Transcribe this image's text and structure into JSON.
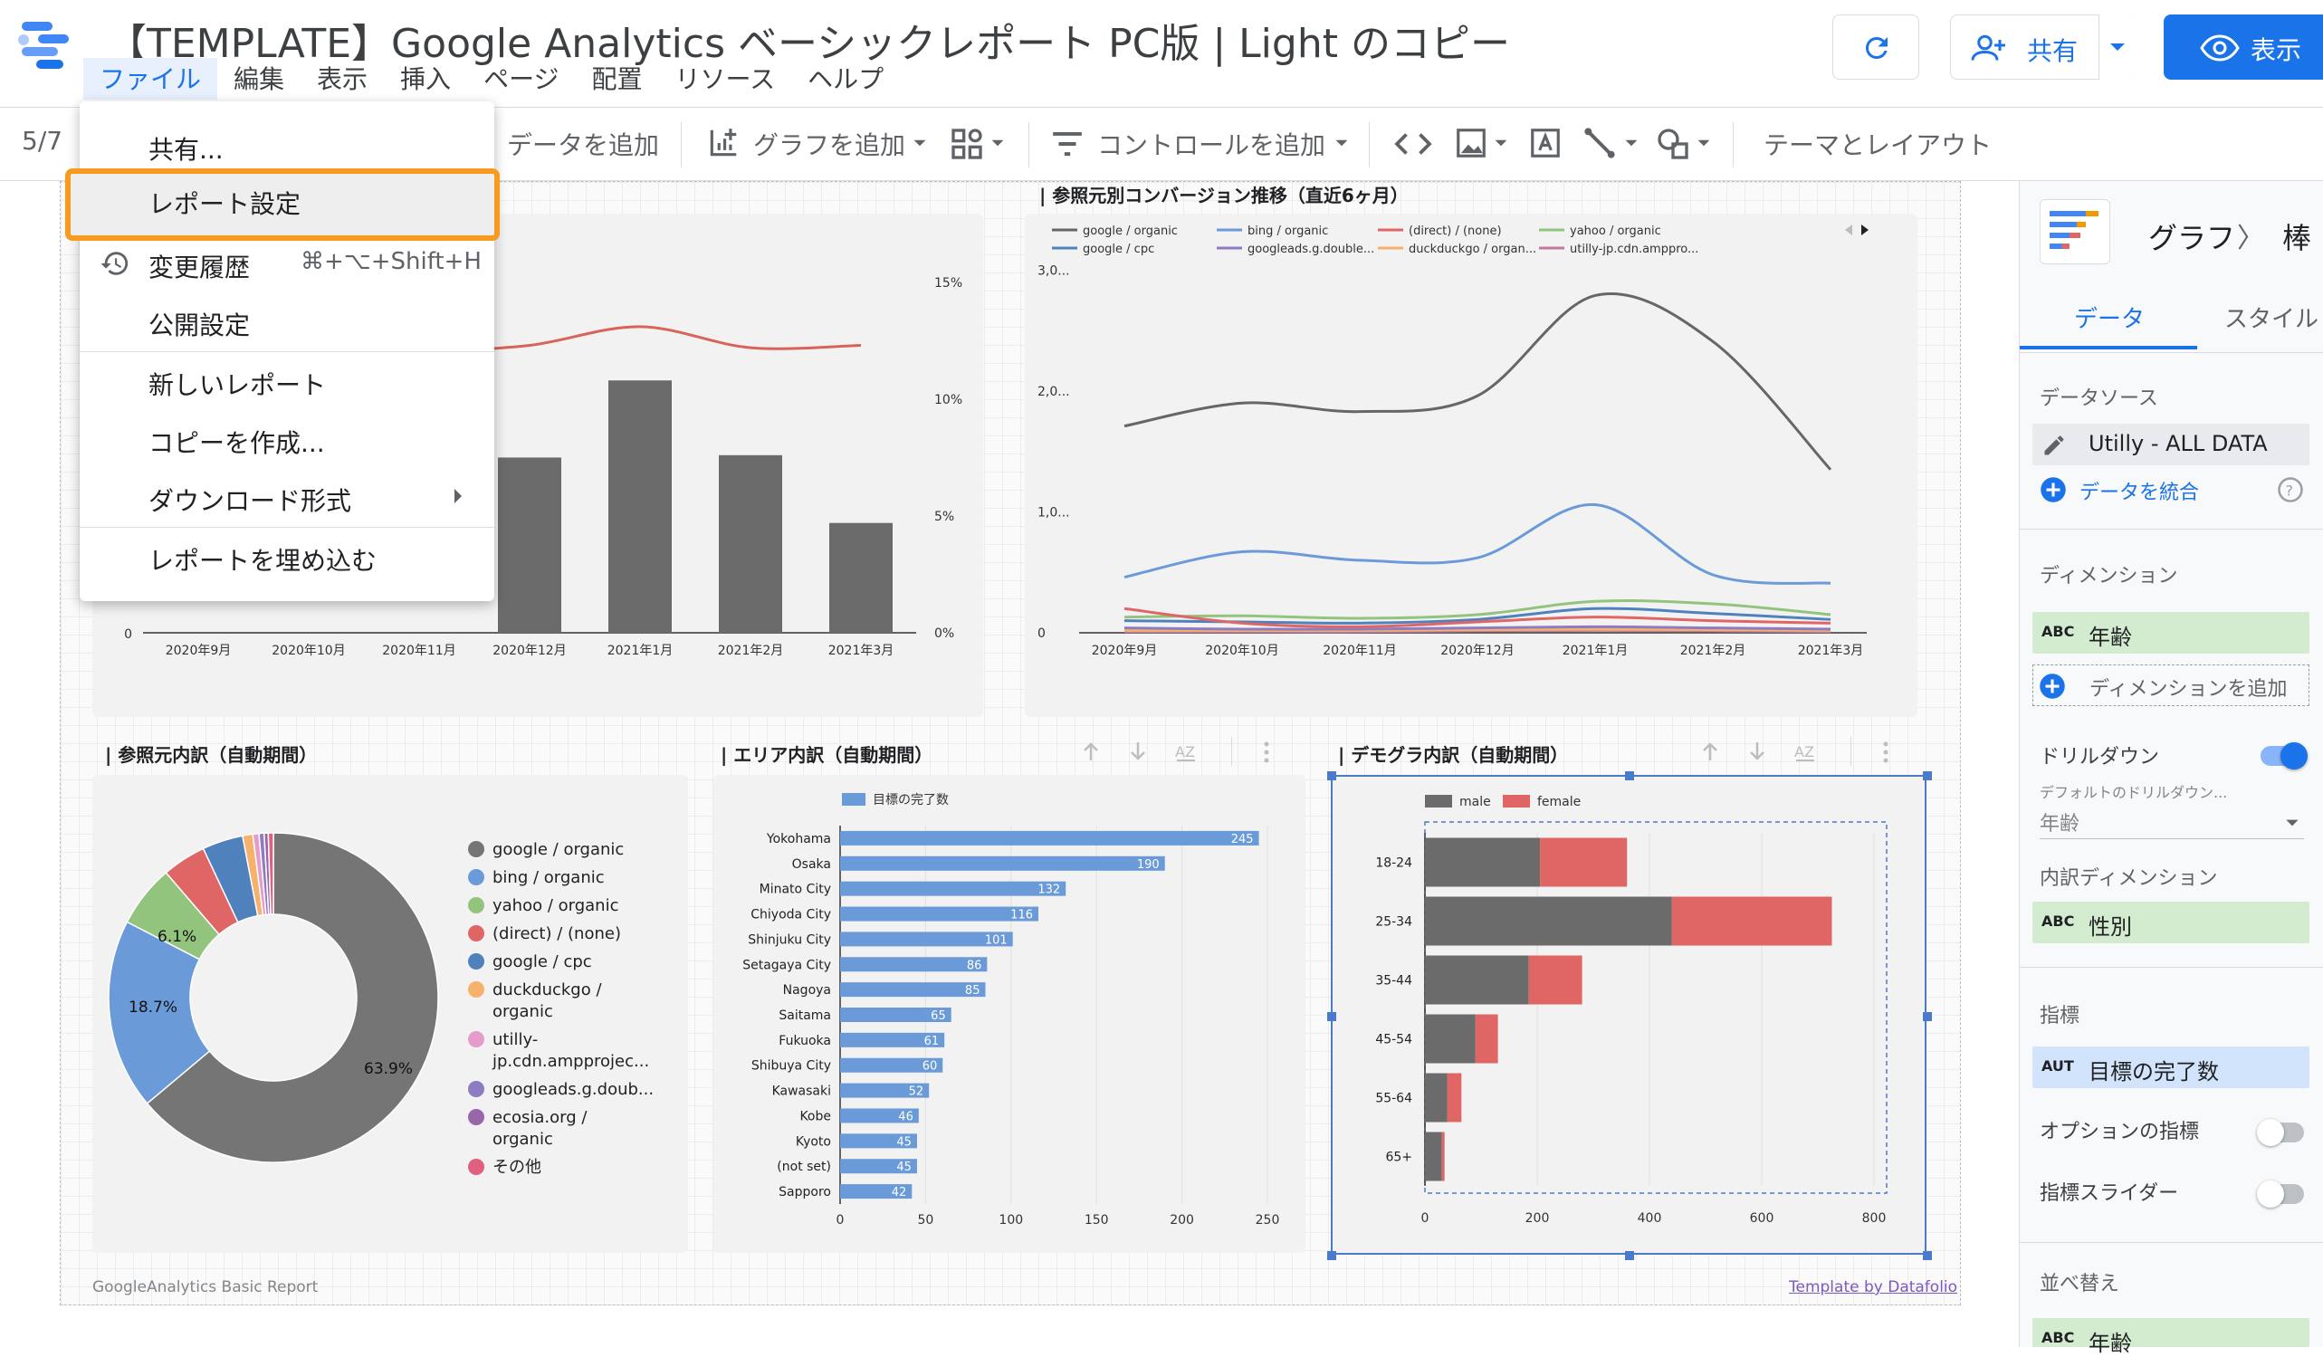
{
  "app": {
    "title": "【TEMPLATE】Google Analytics ベーシックレポート PC版 | Light のコピー",
    "menu": [
      "ファイル",
      "編集",
      "表示",
      "挿入",
      "ページ",
      "配置",
      "リソース",
      "ヘルプ"
    ],
    "share_label": "共有",
    "view_label": "表示"
  },
  "toolbar": {
    "page_indicator": "5/7",
    "add_data": "データを追加",
    "add_chart": "グラフを追加",
    "add_control": "コントロールを追加",
    "theme_layout": "テーマとレイアウト"
  },
  "file_menu": {
    "items": [
      {
        "label": "共有..."
      },
      {
        "label": "レポート設定"
      },
      {
        "label": "変更履歴",
        "shortcut": "⌘+⌥+Shift+H"
      },
      {
        "label": "公開設定"
      },
      {
        "label": "新しいレポート"
      },
      {
        "label": "コピーを作成..."
      },
      {
        "label": "ダウンロード形式"
      },
      {
        "label": "レポートを埋め込む"
      }
    ]
  },
  "charts": {
    "top_left": {
      "categories": [
        "2020年9月",
        "2020年10月",
        "2020年11月",
        "2020年12月",
        "2021年1月",
        "2021年2月",
        "2021年3月"
      ],
      "y_right_ticks": [
        "15%",
        "10%",
        "5%",
        "0%"
      ],
      "y_left_tick": "0"
    },
    "line": {
      "title": "| 参照元別コンバージョン推移（直近6ヶ月）",
      "legend": [
        "google / organic",
        "bing / organic",
        "(direct) / (none)",
        "yahoo / organic",
        "google / cpc",
        "googleads.g.double...",
        "duckduckgo / organ...",
        "utilly-jp.cdn.amppro..."
      ],
      "y_ticks": [
        "3,0...",
        "2,0...",
        "1,0...",
        "0"
      ],
      "categories": [
        "2020年9月",
        "2020年10月",
        "2020年11月",
        "2020年12月",
        "2021年1月",
        "2021年2月",
        "2021年3月"
      ]
    },
    "donut": {
      "title": "| 参照元内訳（自動期間）",
      "legend": [
        "google / organic",
        "bing / organic",
        "yahoo / organic",
        "(direct) / (none)",
        "google / cpc",
        "duckduckgo / organic",
        "utilly-jp.cdn.ampprojec...",
        "googleads.g.doub...",
        "ecosia.org / organic",
        "その他"
      ],
      "slice_labels": [
        "63.9%",
        "18.7%",
        "6.1%"
      ]
    },
    "area": {
      "title": "| エリア内訳（自動期間）",
      "legend": "目標の完了数",
      "x_ticks": [
        "0",
        "50",
        "100",
        "150",
        "200",
        "250"
      ]
    },
    "demo": {
      "title": "| デモグラ内訳（自動期間）",
      "legend_male": "male",
      "legend_female": "female",
      "x_ticks": [
        "0",
        "200",
        "400",
        "600",
        "800"
      ]
    }
  },
  "chart_data": [
    {
      "type": "bar",
      "categories": [
        "2020年9月",
        "2020年10月",
        "2020年11月",
        "2020年12月",
        "2021年1月",
        "2021年2月",
        "2021年3月"
      ],
      "series": [
        {
          "values": [
            null,
            null,
            null,
            7.5,
            10.8,
            7.6,
            4.7
          ]
        },
        {
          "values": [
            null,
            null,
            12,
            12.3,
            13.1,
            12.2,
            12.3
          ]
        }
      ]
    },
    {
      "type": "line",
      "title": "| 参照元別コンバージョン推移（直近6ヶ月）",
      "categories": [
        "2020年9月",
        "2020年10月",
        "2020年11月",
        "2020年12月",
        "2021年1月",
        "2021年2月",
        "2021年3月"
      ],
      "series": [
        {
          "name": "google / organic",
          "color": "#666666",
          "values": [
            1710,
            1900,
            1830,
            1960,
            2790,
            2410,
            1350
          ]
        },
        {
          "name": "bing / organic",
          "color": "#6a9bd8",
          "values": [
            460,
            670,
            600,
            620,
            1060,
            480,
            410
          ]
        },
        {
          "name": "(direct) / (none)",
          "color": "#e06666",
          "values": [
            200,
            80,
            50,
            90,
            130,
            100,
            80
          ]
        },
        {
          "name": "yahoo / organic",
          "color": "#93c47d",
          "values": [
            130,
            140,
            120,
            150,
            260,
            240,
            150
          ]
        },
        {
          "name": "google / cpc",
          "color": "#4f81bd",
          "values": [
            100,
            90,
            80,
            110,
            200,
            160,
            110
          ]
        },
        {
          "name": "googleads.g.double...",
          "color": "#8e7cc3",
          "values": [
            40,
            30,
            30,
            40,
            50,
            40,
            30
          ]
        },
        {
          "name": "duckduckgo / organ...",
          "color": "#f6b26b",
          "values": [
            20,
            20,
            20,
            25,
            30,
            25,
            20
          ]
        },
        {
          "name": "utilly-jp.cdn.amppro...",
          "color": "#c27ba0",
          "values": [
            10,
            10,
            10,
            15,
            20,
            15,
            10
          ]
        }
      ]
    },
    {
      "type": "pie",
      "title": "| 参照元内訳（自動期間）",
      "slices": [
        {
          "label": "google / organic",
          "value": 63.9,
          "color": "#757575"
        },
        {
          "label": "bing / organic",
          "value": 18.7,
          "color": "#6a9bd8"
        },
        {
          "label": "yahoo / organic",
          "value": 6.1,
          "color": "#93c47d"
        },
        {
          "label": "(direct) / (none)",
          "value": 4.3,
          "color": "#e06666"
        },
        {
          "label": "google / cpc",
          "value": 4.0,
          "color": "#4f81bd"
        },
        {
          "label": "duckduckgo / organic",
          "value": 1.0,
          "color": "#f6b26b"
        },
        {
          "label": "utilly-jp.cdn.ampprojec...",
          "value": 0.6,
          "color": "#e69ccb"
        },
        {
          "label": "googleads.g.doub...",
          "value": 0.5,
          "color": "#8e7cc3"
        },
        {
          "label": "ecosia.org / organic",
          "value": 0.4,
          "color": "#9966aa"
        },
        {
          "label": "その他",
          "value": 0.5,
          "color": "#e0607e"
        }
      ]
    },
    {
      "type": "bar",
      "title": "| エリア内訳（自動期間）",
      "categories": [
        "Yokohama",
        "Osaka",
        "Minato City",
        "Chiyoda City",
        "Shinjuku City",
        "Setagaya City",
        "Nagoya",
        "Saitama",
        "Fukuoka",
        "Shibuya City",
        "Kawasaki",
        "Kobe",
        "Kyoto",
        "(not set)",
        "Sapporo"
      ],
      "series": [
        {
          "name": "目標の完了数",
          "values": [
            245,
            190,
            132,
            116,
            101,
            86,
            85,
            65,
            61,
            60,
            52,
            46,
            45,
            45,
            42
          ]
        }
      ],
      "xlim": [
        0,
        250
      ]
    },
    {
      "type": "bar",
      "title": "| デモグラ内訳（自動期間）",
      "categories": [
        "18-24",
        "25-34",
        "35-44",
        "45-54",
        "55-64",
        "65+"
      ],
      "series": [
        {
          "name": "male",
          "values": [
            205,
            440,
            185,
            90,
            40,
            30
          ]
        },
        {
          "name": "female",
          "values": [
            155,
            285,
            95,
            40,
            25,
            5
          ]
        }
      ],
      "xlim": [
        0,
        800
      ]
    }
  ],
  "footer": {
    "left": "GoogleAnalytics Basic Report",
    "right": "Template by Datafolio"
  },
  "right_panel": {
    "breadcrumb_chart": "グラフ",
    "breadcrumb_sep": "〉",
    "breadcrumb_type": "棒",
    "tab_data": "データ",
    "tab_style": "スタイル",
    "data_source_title": "データソース",
    "data_source": "Utilly - ALL DATA",
    "blend_data": "データを統合",
    "dimension_title": "ディメンション",
    "dimension_icon": "ABC",
    "dimension": "年齢",
    "add_dimension": "ディメンションを追加",
    "drilldown": "ドリルダウン",
    "default_drilldown": "デフォルトのドリルダウン...",
    "default_drilldown_value": "年齢",
    "breakdown_title": "内訳ディメンション",
    "breakdown": "性別",
    "metric_title": "指標",
    "metric_icon": "AUT",
    "metric": "目標の完了数",
    "optional_metrics": "オプションの指標",
    "metric_slider": "指標スライダー",
    "sort_title": "並べ替え",
    "sort": "年齢"
  }
}
